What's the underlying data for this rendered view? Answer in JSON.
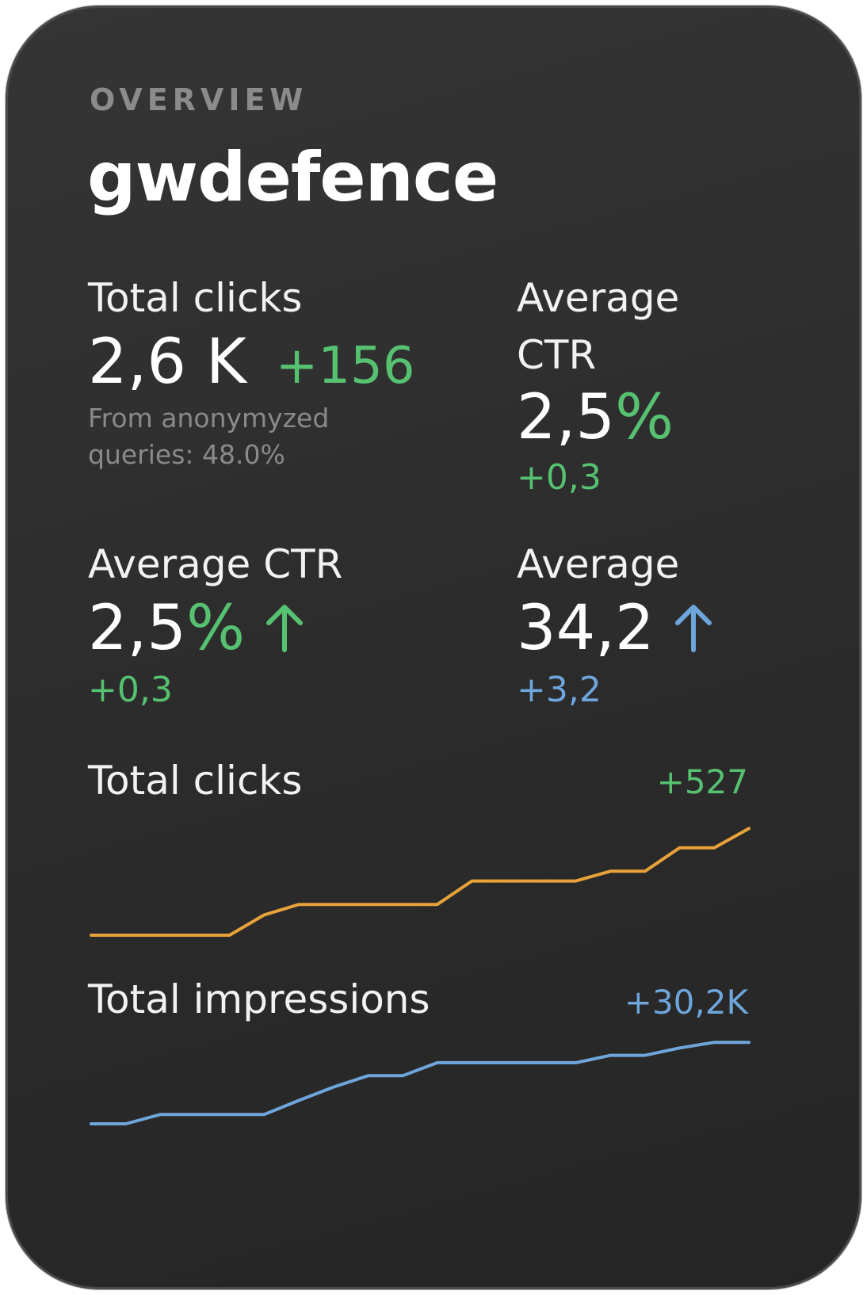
{
  "header": {
    "eyebrow": "OVERVIEW",
    "title": "gwdefence"
  },
  "metrics": {
    "total_clicks": {
      "label": "Total clicks",
      "value": "2,6 K",
      "delta": "+156",
      "note_line1": "From anonymyzed",
      "note_line2": "queries: 48.0%"
    },
    "avg_ctr_top": {
      "label_line1": "Average",
      "label_line2": "CTR",
      "value": "2,5",
      "unit": "%",
      "delta": "+0,3"
    },
    "avg_ctr": {
      "label": "Average CTR",
      "value": "2,5",
      "unit": "%",
      "delta": "+0,3",
      "arrow_icon": "arrow-up-icon"
    },
    "average": {
      "label": "Average",
      "value": "34,2",
      "delta": "+3,2",
      "arrow_icon": "arrow-up-icon"
    }
  },
  "colors": {
    "positive": "#56c271",
    "info": "#6ea6dc",
    "clicks_line": "#e8a23a",
    "impressions_line": "#6ea6dc"
  },
  "chart_data": [
    {
      "type": "line",
      "title": "Total clicks",
      "delta": "+527",
      "x": [
        0,
        1,
        2,
        3,
        4,
        5,
        6,
        7,
        8,
        9,
        10,
        11,
        12,
        13,
        14,
        15,
        16,
        17,
        18,
        19
      ],
      "series": [
        {
          "values": [
            0,
            0,
            0,
            0,
            0,
            58,
            88,
            88,
            88,
            88,
            88,
            155,
            155,
            155,
            155,
            183,
            183,
            250,
            250,
            305
          ]
        }
      ],
      "ylim": [
        0,
        340
      ],
      "grid": false
    },
    {
      "type": "line",
      "title": "Total impressions",
      "delta": "+30,2K",
      "x": [
        0,
        1,
        2,
        3,
        4,
        5,
        6,
        7,
        8,
        9,
        10,
        11,
        12,
        13,
        14,
        15,
        16,
        17,
        18,
        19
      ],
      "series": [
        {
          "values": [
            0,
            0,
            2.8,
            2.8,
            2.8,
            2.8,
            7,
            11,
            14.4,
            14.4,
            18.3,
            18.3,
            18.3,
            18.3,
            18.3,
            20.5,
            20.5,
            22.7,
            24.4,
            24.4
          ]
        }
      ],
      "ylim": [
        0,
        28
      ],
      "grid": false
    }
  ]
}
